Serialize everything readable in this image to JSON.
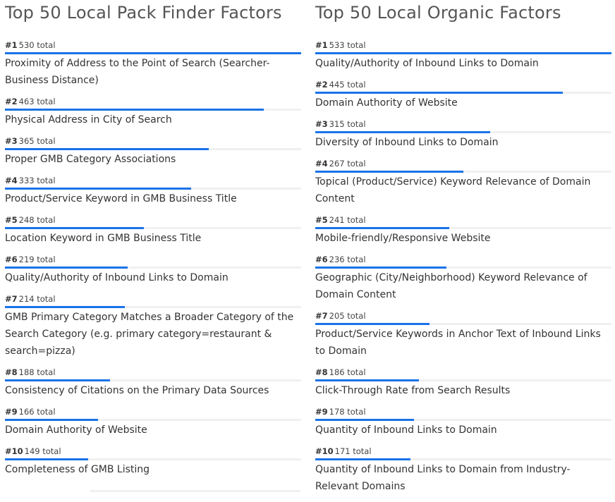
{
  "chart_data": [
    {
      "type": "bar",
      "title": "Top 50 Local Pack Finder Factors",
      "unit_label": "total",
      "xlim": [
        0,
        530
      ],
      "items": [
        {
          "rank": "#1",
          "total": 530,
          "total_label": "530 total",
          "label": "Proximity of Address to the Point of Search (Searcher-Business Distance)"
        },
        {
          "rank": "#2",
          "total": 463,
          "total_label": "463 total",
          "label": "Physical Address in City of Search"
        },
        {
          "rank": "#3",
          "total": 365,
          "total_label": "365 total",
          "label": "Proper GMB Category Associations"
        },
        {
          "rank": "#4",
          "total": 333,
          "total_label": "333 total",
          "label": "Product/Service Keyword in GMB Business Title"
        },
        {
          "rank": "#5",
          "total": 248,
          "total_label": "248 total",
          "label": "Location Keyword in GMB Business Title"
        },
        {
          "rank": "#6",
          "total": 219,
          "total_label": "219 total",
          "label": "Quality/Authority of Inbound Links to Domain"
        },
        {
          "rank": "#7",
          "total": 214,
          "total_label": "214 total",
          "label": "GMB Primary Category Matches a Broader Category of the Search Category (e.g. primary category=restaurant & search=pizza)"
        },
        {
          "rank": "#8",
          "total": 188,
          "total_label": "188 total",
          "label": "Consistency of Citations on the Primary Data Sources"
        },
        {
          "rank": "#9",
          "total": 166,
          "total_label": "166 total",
          "label": "Domain Authority of Website"
        },
        {
          "rank": "#10",
          "total": 149,
          "total_label": "149 total",
          "label": "Completeness of GMB Listing"
        }
      ]
    },
    {
      "type": "bar",
      "title": "Top 50 Local Organic Factors",
      "unit_label": "total",
      "xlim": [
        0,
        533
      ],
      "items": [
        {
          "rank": "#1",
          "total": 533,
          "total_label": "533 total",
          "label": "Quality/Authority of Inbound Links to Domain"
        },
        {
          "rank": "#2",
          "total": 445,
          "total_label": "445 total",
          "label": "Domain Authority of Website"
        },
        {
          "rank": "#3",
          "total": 315,
          "total_label": "315 total",
          "label": "Diversity of Inbound Links to Domain"
        },
        {
          "rank": "#4",
          "total": 267,
          "total_label": "267 total",
          "label": "Topical (Product/Service) Keyword Relevance of Domain Content"
        },
        {
          "rank": "#5",
          "total": 241,
          "total_label": "241 total",
          "label": "Mobile-friendly/Responsive Website"
        },
        {
          "rank": "#6",
          "total": 236,
          "total_label": "236 total",
          "label": "Geographic (City/Neighborhood) Keyword Relevance of Domain Content"
        },
        {
          "rank": "#7",
          "total": 205,
          "total_label": "205 total",
          "label": "Product/Service Keywords in Anchor Text of Inbound Links to Domain"
        },
        {
          "rank": "#8",
          "total": 186,
          "total_label": "186 total",
          "label": "Click-Through Rate from Search Results"
        },
        {
          "rank": "#9",
          "total": 178,
          "total_label": "178 total",
          "label": "Quantity of Inbound Links to Domain"
        },
        {
          "rank": "#10",
          "total": 171,
          "total_label": "171 total",
          "label": "Quantity of Inbound Links to Domain from Industry-Relevant Domains"
        }
      ]
    }
  ],
  "colors": {
    "bar_fill": "#1a73e8",
    "bar_track": "#f0f0f0",
    "title_text": "#555555",
    "body_text": "#333333"
  }
}
